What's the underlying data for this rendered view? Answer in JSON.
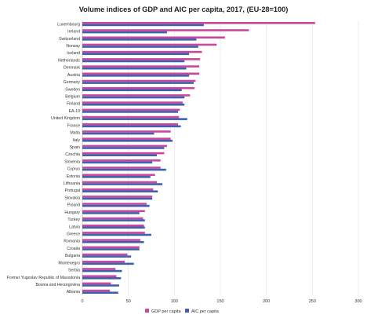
{
  "chart_data": {
    "type": "bar",
    "orientation": "horizontal",
    "title": "Volume indices of GDP and AIC per capita, 2017, (EU-28=100)",
    "xlabel": "",
    "ylabel": "",
    "xlim": [
      0,
      300
    ],
    "xticks": [
      0,
      50,
      100,
      150,
      200,
      250,
      300
    ],
    "grid": true,
    "legend_position": "bottom",
    "categories": [
      "Luxembourg",
      "Ireland",
      "Switzerland",
      "Norway",
      "Iceland",
      "Netherlands",
      "Denmark",
      "Austria",
      "Germany",
      "Sweden",
      "Belgium",
      "Finland",
      "EA-19",
      "United Kingdom",
      "France",
      "Malta",
      "Italy",
      "Spain",
      "Czechia",
      "Slovenia",
      "Cyprus",
      "Estonia",
      "Lithuania",
      "Portugal",
      "Slovakia",
      "Poland",
      "Hungary",
      "Turkey",
      "Latvia",
      "Greece",
      "Romania",
      "Croatia",
      "Bulgaria",
      "Montenegro",
      "Serbia",
      "Former Yugoslav Republic of Macedonia",
      "Bosnia and Herzegovina",
      "Albania"
    ],
    "series": [
      {
        "name": "GDP per capita",
        "color": "#c9479e",
        "values": [
          253,
          181,
          155,
          146,
          130,
          128,
          127,
          127,
          123,
          122,
          117,
          109,
          106,
          105,
          104,
          96,
          96,
          92,
          89,
          85,
          85,
          79,
          81,
          77,
          76,
          70,
          68,
          66,
          67,
          68,
          63,
          62,
          49,
          46,
          36,
          37,
          31,
          30
        ]
      },
      {
        "name": "AIC per capita",
        "color": "#3f61ad",
        "values": [
          132,
          92,
          124,
          126,
          116,
          111,
          113,
          116,
          121,
          108,
          111,
          111,
          104,
          114,
          107,
          78,
          98,
          89,
          81,
          76,
          91,
          74,
          87,
          82,
          76,
          73,
          62,
          68,
          68,
          75,
          67,
          62,
          53,
          56,
          43,
          42,
          40,
          39
        ]
      }
    ]
  }
}
